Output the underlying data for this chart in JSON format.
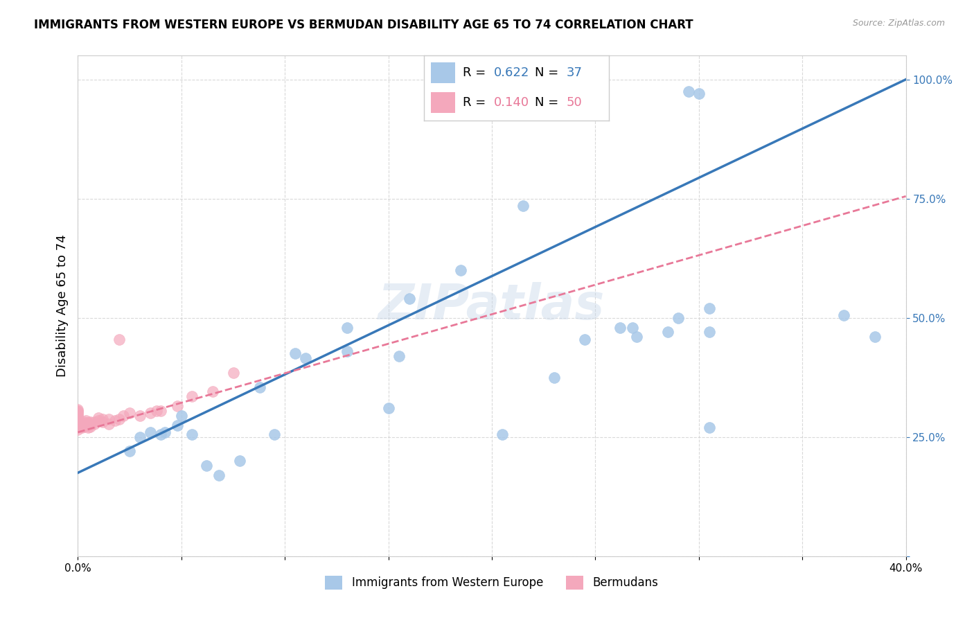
{
  "title": "IMMIGRANTS FROM WESTERN EUROPE VS BERMUDAN DISABILITY AGE 65 TO 74 CORRELATION CHART",
  "source": "Source: ZipAtlas.com",
  "ylabel": "Disability Age 65 to 74",
  "xlim": [
    0.0,
    0.4
  ],
  "ylim": [
    0.0,
    1.05
  ],
  "x_ticks": [
    0.0,
    0.05,
    0.1,
    0.15,
    0.2,
    0.25,
    0.3,
    0.35,
    0.4
  ],
  "x_tick_labels": [
    "0.0%",
    "",
    "",
    "",
    "",
    "",
    "",
    "",
    "40.0%"
  ],
  "y_ticks": [
    0.0,
    0.25,
    0.5,
    0.75,
    1.0
  ],
  "y_tick_labels": [
    "",
    "25.0%",
    "50.0%",
    "75.0%",
    "100.0%"
  ],
  "blue_R": 0.622,
  "blue_N": 37,
  "pink_R": 0.14,
  "pink_N": 50,
  "blue_color": "#a8c8e8",
  "pink_color": "#f4a8bc",
  "blue_line_color": "#3878b8",
  "pink_line_color": "#e87898",
  "watermark": "ZIPatlas",
  "blue_line_x0": 0.0,
  "blue_line_y0": 0.175,
  "blue_line_x1": 0.4,
  "blue_line_y1": 1.0,
  "pink_line_x0": 0.0,
  "pink_line_y0": 0.26,
  "pink_line_x1": 0.4,
  "pink_line_y1": 0.755,
  "blue_points_x": [
    0.295,
    0.3,
    0.215,
    0.185,
    0.16,
    0.13,
    0.13,
    0.155,
    0.11,
    0.105,
    0.088,
    0.05,
    0.048,
    0.055,
    0.042,
    0.04,
    0.035,
    0.03,
    0.285,
    0.305,
    0.305,
    0.37,
    0.305,
    0.23,
    0.262,
    0.268,
    0.27,
    0.29,
    0.245,
    0.15,
    0.205,
    0.095,
    0.078,
    0.068,
    0.062,
    0.385,
    0.025
  ],
  "blue_points_y": [
    0.975,
    0.97,
    0.735,
    0.6,
    0.54,
    0.48,
    0.43,
    0.42,
    0.415,
    0.425,
    0.355,
    0.295,
    0.275,
    0.255,
    0.26,
    0.255,
    0.26,
    0.25,
    0.47,
    0.47,
    0.52,
    0.505,
    0.27,
    0.375,
    0.48,
    0.48,
    0.46,
    0.5,
    0.455,
    0.31,
    0.255,
    0.255,
    0.2,
    0.17,
    0.19,
    0.46,
    0.22
  ],
  "pink_points_x": [
    0.0,
    0.0,
    0.0,
    0.0,
    0.0,
    0.0,
    0.0,
    0.0,
    0.0,
    0.0,
    0.0,
    0.0,
    0.0,
    0.0,
    0.0,
    0.0,
    0.002,
    0.002,
    0.002,
    0.003,
    0.003,
    0.003,
    0.004,
    0.004,
    0.005,
    0.005,
    0.005,
    0.006,
    0.006,
    0.008,
    0.008,
    0.01,
    0.01,
    0.012,
    0.012,
    0.015,
    0.015,
    0.018,
    0.02,
    0.022,
    0.025,
    0.03,
    0.035,
    0.038,
    0.04,
    0.048,
    0.055,
    0.065,
    0.075,
    0.02
  ],
  "pink_points_y": [
    0.265,
    0.27,
    0.275,
    0.278,
    0.28,
    0.282,
    0.285,
    0.287,
    0.29,
    0.292,
    0.295,
    0.298,
    0.3,
    0.303,
    0.305,
    0.308,
    0.27,
    0.275,
    0.28,
    0.272,
    0.275,
    0.282,
    0.278,
    0.285,
    0.27,
    0.275,
    0.28,
    0.272,
    0.282,
    0.278,
    0.282,
    0.285,
    0.29,
    0.282,
    0.288,
    0.278,
    0.288,
    0.285,
    0.288,
    0.295,
    0.3,
    0.295,
    0.3,
    0.305,
    0.305,
    0.315,
    0.335,
    0.345,
    0.385,
    0.455
  ]
}
